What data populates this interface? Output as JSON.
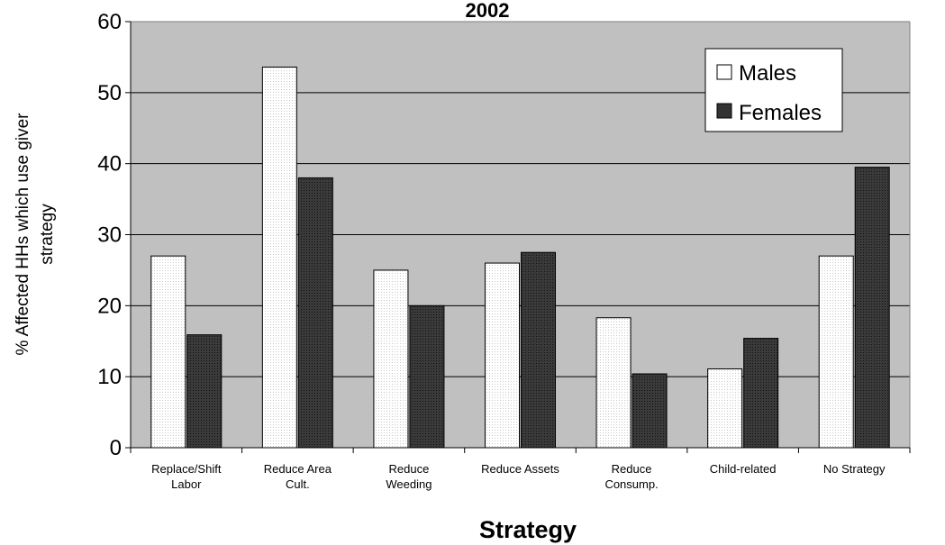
{
  "chart_data": {
    "type": "bar",
    "title": "2002",
    "xlabel": "Strategy",
    "ylabel_lines": [
      "% Affected HHs which use giver",
      "strategy"
    ],
    "ylim": [
      0,
      60
    ],
    "yticks": [
      "0",
      "10",
      "20",
      "30",
      "40",
      "50",
      "60"
    ],
    "grid": true,
    "legend_position": "top-right",
    "categories": [
      [
        "Replace/Shift",
        "Labor"
      ],
      [
        "Reduce Area",
        "Cult."
      ],
      [
        "Reduce",
        "Weeding"
      ],
      [
        "Reduce Assets"
      ],
      [
        "Reduce",
        "Consump."
      ],
      [
        "Child-related"
      ],
      [
        "No Strategy"
      ]
    ],
    "series": [
      {
        "name": "Males",
        "color": "#ffffff",
        "values": [
          27,
          53.6,
          25,
          26,
          18.3,
          11.1,
          27
        ]
      },
      {
        "name": "Females",
        "color": "#333333",
        "values": [
          15.9,
          38,
          20,
          27.5,
          10.4,
          15.4,
          39.5
        ]
      }
    ],
    "colors": {
      "plot_background": "#c0c0c0",
      "axis": "#000000"
    }
  }
}
